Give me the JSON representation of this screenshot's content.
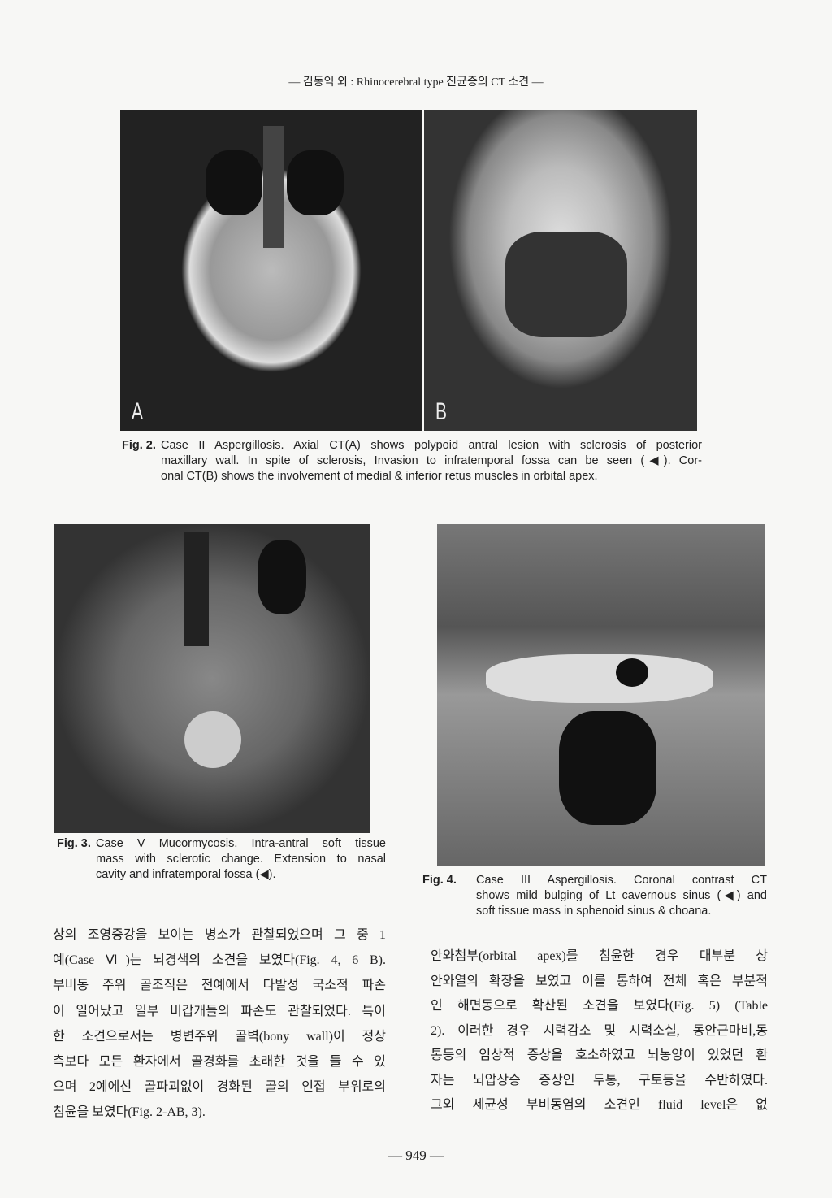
{
  "header": "— 김동익 외 : Rhinocerebral type 진균증의 CT 소견 —",
  "figures": [
    {
      "label": "Fig. 2.",
      "panels": [
        "A",
        "B"
      ],
      "caption": [
        "Case II Aspergillosis. Axial CT(A) shows polypoid antral lesion with sclerosis of posterior",
        "maxillary wall. In spite of sclerosis, Invasion to infratemporal fossa can be seen (◀). Cor-",
        "onal CT(B) shows the involvement of medial & inferior retus muscles in orbital apex."
      ]
    },
    {
      "label": "Fig. 3.",
      "caption": [
        "Case V Mucormycosis. Intra-antral soft tissue",
        "mass with sclerotic change. Extension to nasal",
        "cavity and infratemporal fossa (◀)."
      ]
    },
    {
      "label": "Fig. 4.",
      "caption": [
        "Case III Aspergillosis. Coronal contrast CT",
        "shows mild bulging of Lt cavernous sinus (◀) and",
        "soft tissue mass in sphenoid sinus & choana."
      ]
    }
  ],
  "body": {
    "left": [
      "상의 조영증강을 보이는 병소가 관찰되었으며 그 중 1",
      "예(Case Ⅵ)는 뇌경색의 소견을 보였다(Fig. 4, 6 B).",
      "부비동 주위 골조직은 전예에서 다발성 국소적 파손",
      "이 일어났고 일부 비갑개들의 파손도 관찰되었다. 특이",
      "한 소견으로서는 병변주위 골벽(bony wall)이 정상",
      "측보다 모든 환자에서 골경화를 초래한 것을 들 수 있",
      "으며 2예에선 골파괴없이 경화된 골의 인접 부위로의",
      "침윤을 보였다(Fig. 2-AB, 3)."
    ],
    "right": [
      "안와첨부(orbital apex)를 침윤한 경우 대부분 상",
      "안와열의 확장을 보였고 이를 통하여 전체 혹은 부분적",
      "인 해면동으로 확산된 소견을 보였다(Fig. 5) (Table",
      "2). 이러한 경우 시력감소 및 시력소실, 동안근마비,동",
      "통등의 임상적 증상을 호소하였고 뇌농양이 있었던 환",
      "자는 뇌압상승 증상인 두통, 구토등을 수반하였다.",
      "그외 세균성 부비동염의 소견인 fluid level은 없"
    ]
  },
  "page_number": "— 949 —"
}
